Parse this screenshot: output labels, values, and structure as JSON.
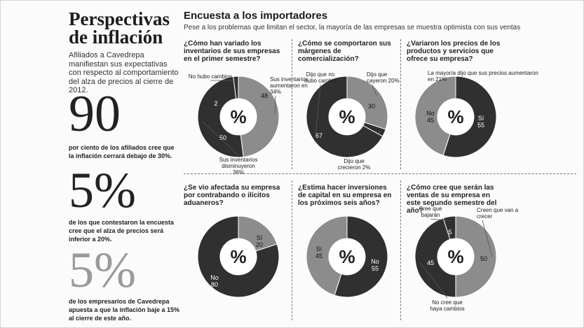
{
  "left": {
    "title_line1": "Perspectivas",
    "title_line2": "de inflación",
    "intro": "Afiliados a Cavedrepa manifiestan sus expectativas con respecto al comportamiento del alza de precios al cierre de 2012.",
    "stat1_value": "90",
    "stat1_text": "por ciento de los afiliados cree que la inflación cerrará debajo de 30%.",
    "stat2_value": "5%",
    "stat2_text": "de los que contestaron la encuesta cree que el alza de precios será inferior a 20%.",
    "stat3_value": "5%",
    "stat3_text": "de los empresarios de Cavedrepa apuesta a que la inflación baje a 15% al cierre de este año."
  },
  "header": {
    "title": "Encuesta a los importadores",
    "subtitle": "Pese a los problemas que limitan el sector, la mayoría de las empresas se muestra optimista con sus ventas"
  },
  "colors": {
    "dark": "#303030",
    "light": "#8c8c8c",
    "hole": "#ffffff"
  },
  "chart_data": [
    {
      "type": "pie",
      "title": "¿Cómo han variado los inventarios de sus empresas en el primer semestre?",
      "center_label": "%",
      "slices": [
        {
          "label": "Sus inventarios aumentaron en 34%",
          "value": 48
        },
        {
          "label": "Sus inventarios disminuyeron 36%",
          "value": 50
        },
        {
          "label": "No hubo cambios",
          "value": 2
        }
      ]
    },
    {
      "type": "pie",
      "title": "¿Cómo se comportaron sus márgenes de comercialización?",
      "center_label": "%",
      "slices": [
        {
          "label": "Dijo que cayeron 20%",
          "value": 30
        },
        {
          "label": "Dijo que crecieron 2%",
          "value": 3
        },
        {
          "label": "Dijo que no hubo cambio",
          "value": 67
        }
      ]
    },
    {
      "type": "pie",
      "title": "¿Variaron los precios de los productos y servicios que ofrece su empresa?",
      "center_label": "%",
      "annotation": "La mayoría dijo que sus precios aumentaron en 21%",
      "slices": [
        {
          "label": "Sí",
          "value": 55
        },
        {
          "label": "No",
          "value": 45
        }
      ]
    },
    {
      "type": "pie",
      "title": "¿Se vio afectada su empresa por contrabando o ilícitos aduaneros?",
      "center_label": "%",
      "slices": [
        {
          "label": "Sí",
          "value": 20
        },
        {
          "label": "No",
          "value": 80
        }
      ]
    },
    {
      "type": "pie",
      "title": "¿Estima hacer inversiones de capital en su empresa en los próximos seis años?",
      "center_label": "%",
      "slices": [
        {
          "label": "No",
          "value": 55
        },
        {
          "label": "Sí",
          "value": 45
        }
      ]
    },
    {
      "type": "pie",
      "title": "¿Cómo cree que serán las ventas de su empresa en este segundo semestre del año?",
      "center_label": "%",
      "slices": [
        {
          "label": "Creen que van a crecer",
          "value": 50
        },
        {
          "label": "No cree que haya cambios",
          "value": 45
        },
        {
          "label": "Cree que bajarán",
          "value": 5
        }
      ]
    }
  ]
}
